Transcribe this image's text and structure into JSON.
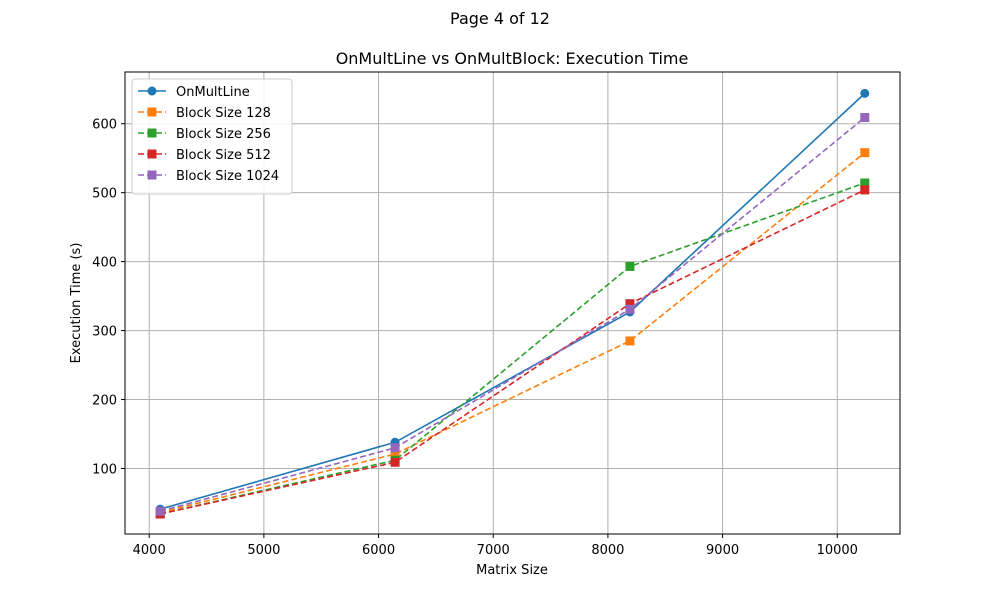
{
  "page": {
    "label": "Page 4 of 12"
  },
  "chart_data": {
    "type": "line",
    "title": "OnMultLine vs OnMultBlock: Execution Time",
    "xlabel": "Matrix Size",
    "ylabel": "Execution Time (s)",
    "x": [
      4096,
      6144,
      8192,
      10240
    ],
    "xlim": [
      3789,
      10547
    ],
    "ylim": [
      5,
      675
    ],
    "xticks": [
      4000,
      5000,
      6000,
      7000,
      8000,
      9000,
      10000
    ],
    "yticks": [
      100,
      200,
      300,
      400,
      500,
      600
    ],
    "grid": true,
    "legend_position": "upper-left",
    "series": [
      {
        "name": "OnMultLine",
        "color": "#1f77b4",
        "line_style": "solid",
        "marker": "circle",
        "values": [
          41,
          138,
          327,
          644
        ]
      },
      {
        "name": "Block Size 128",
        "color": "#ff7f0e",
        "line_style": "dashed",
        "marker": "square",
        "values": [
          36,
          121,
          285,
          558
        ]
      },
      {
        "name": "Block Size 256",
        "color": "#2ca02c",
        "line_style": "dashed",
        "marker": "square",
        "values": [
          34,
          112,
          393,
          514
        ]
      },
      {
        "name": "Block Size 512",
        "color": "#d62728",
        "line_style": "dashed",
        "marker": "square",
        "values": [
          34,
          109,
          339,
          504
        ]
      },
      {
        "name": "Block Size 1024",
        "color": "#9467bd",
        "line_style": "dashed",
        "marker": "square",
        "values": [
          38,
          130,
          331,
          609
        ]
      }
    ]
  }
}
